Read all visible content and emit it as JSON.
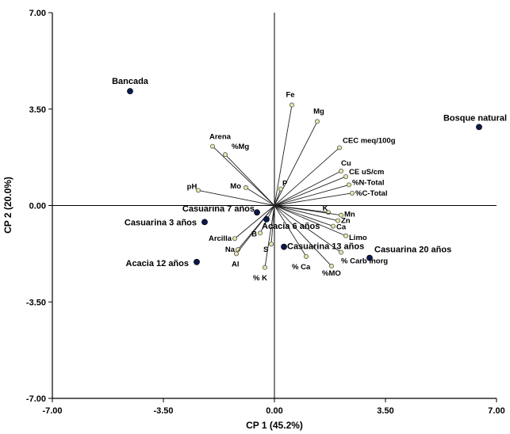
{
  "chart_data": {
    "type": "scatter",
    "subtype": "biplot",
    "xlabel": "CP 1 (45.2%)",
    "ylabel": "CP 2 (20.0%)",
    "xlim": [
      -7.0,
      7.0
    ],
    "ylim": [
      -7.0,
      7.0
    ],
    "xticks": [
      "-7.00",
      "-3.50",
      "0.00",
      "3.50",
      "7.00"
    ],
    "yticks": [
      "-7.00",
      "-3.50",
      "0.00",
      "3.50",
      "7.00"
    ],
    "grid": false,
    "observation_color": "#0b1a4a",
    "variable_color": "#e8e6a8",
    "observations": [
      {
        "name": "Bancada",
        "x": -4.55,
        "y": 4.15
      },
      {
        "name": "Bosque natural",
        "x": 6.45,
        "y": 2.85
      },
      {
        "name": "Casuarina 7 años",
        "x": -0.55,
        "y": -0.25
      },
      {
        "name": "Casuarina 3 años",
        "x": -2.2,
        "y": -0.6
      },
      {
        "name": "Acacia 6 años",
        "x": -0.25,
        "y": -0.5
      },
      {
        "name": "Acacia 12 años",
        "x": -2.45,
        "y": -2.05
      },
      {
        "name": "Casuarina 13 años",
        "x": 0.3,
        "y": -1.5
      },
      {
        "name": "Casuarina 20 años",
        "x": 3.0,
        "y": -1.9
      }
    ],
    "variables": [
      {
        "name": "Fe",
        "x": 0.55,
        "y": 3.65
      },
      {
        "name": "Mg",
        "x": 1.35,
        "y": 3.05
      },
      {
        "name": "Arena",
        "x": -1.95,
        "y": 2.15
      },
      {
        "name": "%Mg",
        "x": -1.55,
        "y": 1.85
      },
      {
        "name": "CEC meq/100g",
        "x": 2.05,
        "y": 2.1
      },
      {
        "name": "Cu",
        "x": 2.1,
        "y": 1.25
      },
      {
        "name": "CE uS/cm",
        "x": 2.25,
        "y": 1.05
      },
      {
        "name": "%N-Total",
        "x": 2.35,
        "y": 0.75
      },
      {
        "name": "%C-Total",
        "x": 2.45,
        "y": 0.45
      },
      {
        "name": "pH",
        "x": -2.4,
        "y": 0.55
      },
      {
        "name": "Mo",
        "x": -0.9,
        "y": 0.65
      },
      {
        "name": "P",
        "x": 0.2,
        "y": 0.6
      },
      {
        "name": "K",
        "x": 1.7,
        "y": -0.25
      },
      {
        "name": "Mn",
        "x": 2.1,
        "y": -0.35
      },
      {
        "name": "Zn",
        "x": 2.0,
        "y": -0.55
      },
      {
        "name": "Ca",
        "x": 1.85,
        "y": -0.75
      },
      {
        "name": "Limo",
        "x": 2.25,
        "y": -1.1
      },
      {
        "name": "% Carb inorg",
        "x": 2.1,
        "y": -1.7
      },
      {
        "name": "%MO",
        "x": 1.8,
        "y": -2.2
      },
      {
        "name": "% Ca",
        "x": 1.0,
        "y": -1.85
      },
      {
        "name": "Arcilla",
        "x": -1.25,
        "y": -1.2
      },
      {
        "name": "Na",
        "x": -1.15,
        "y": -1.6
      },
      {
        "name": "Al",
        "x": -1.2,
        "y": -1.75
      },
      {
        "name": "B",
        "x": -0.45,
        "y": -1.0
      },
      {
        "name": "S",
        "x": -0.1,
        "y": -1.4
      },
      {
        "name": "% K",
        "x": -0.3,
        "y": -2.25
      }
    ]
  }
}
